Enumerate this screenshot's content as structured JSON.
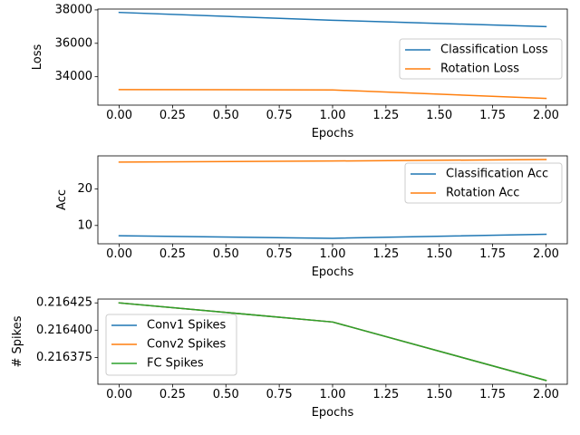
{
  "chart_data": [
    {
      "type": "line",
      "xlabel": "Epochs",
      "ylabel": "Loss",
      "xlim": [
        -0.1,
        2.1
      ],
      "ylim": [
        32300,
        38050
      ],
      "xticks": [
        0.0,
        0.25,
        0.5,
        0.75,
        1.0,
        1.25,
        1.5,
        1.75,
        2.0
      ],
      "xtick_labels": [
        "0.00",
        "0.25",
        "0.50",
        "0.75",
        "1.00",
        "1.25",
        "1.50",
        "1.75",
        "2.00"
      ],
      "yticks": [
        34000,
        36000,
        38000
      ],
      "ytick_labels": [
        "34000",
        "36000",
        "38000"
      ],
      "legend": "center-right",
      "grid": false,
      "series": [
        {
          "name": "Classification Loss",
          "color": "#1f77b4",
          "x": [
            0,
            1,
            2
          ],
          "y": [
            37850,
            37380,
            37000
          ]
        },
        {
          "name": "Rotation Loss",
          "color": "#ff7f0e",
          "x": [
            0,
            1,
            2
          ],
          "y": [
            33230,
            33210,
            32700
          ]
        }
      ]
    },
    {
      "type": "line",
      "xlabel": "Epochs",
      "ylabel": "Acc",
      "xlim": [
        -0.1,
        2.1
      ],
      "ylim": [
        5.0,
        29.0
      ],
      "xticks": [
        0.0,
        0.25,
        0.5,
        0.75,
        1.0,
        1.25,
        1.5,
        1.75,
        2.0
      ],
      "xtick_labels": [
        "0.00",
        "0.25",
        "0.50",
        "0.75",
        "1.00",
        "1.25",
        "1.50",
        "1.75",
        "2.00"
      ],
      "yticks": [
        10,
        20
      ],
      "ytick_labels": [
        "10",
        "20"
      ],
      "legend": "upper-right",
      "grid": false,
      "series": [
        {
          "name": "Classification Acc",
          "color": "#1f77b4",
          "x": [
            0,
            1,
            2
          ],
          "y": [
            7.2,
            6.5,
            7.6
          ]
        },
        {
          "name": "Rotation Acc",
          "color": "#ff7f0e",
          "x": [
            0,
            1,
            2
          ],
          "y": [
            27.3,
            27.6,
            28.0
          ]
        }
      ]
    },
    {
      "type": "line",
      "xlabel": "Epochs",
      "ylabel": "# Spikes",
      "xlim": [
        -0.1,
        2.1
      ],
      "ylim": [
        0.2163505,
        0.2164285
      ],
      "xticks": [
        0.0,
        0.25,
        0.5,
        0.75,
        1.0,
        1.25,
        1.5,
        1.75,
        2.0
      ],
      "xtick_labels": [
        "0.00",
        "0.25",
        "0.50",
        "0.75",
        "1.00",
        "1.25",
        "1.50",
        "1.75",
        "2.00"
      ],
      "yticks": [
        0.216375,
        0.2164,
        0.216425
      ],
      "ytick_labels": [
        "0.216375",
        "0.216400",
        "0.216425"
      ],
      "legend": "center-left",
      "grid": false,
      "series": [
        {
          "name": "Conv1 Spikes",
          "color": "#1f77b4",
          "x": [
            0,
            1,
            2
          ],
          "y": [
            0.216425,
            0.2164075,
            0.216354
          ]
        },
        {
          "name": "Conv2 Spikes",
          "color": "#ff7f0e",
          "x": [
            0,
            1,
            2
          ],
          "y": [
            0.216425,
            0.2164075,
            0.216354
          ]
        },
        {
          "name": "FC Spikes",
          "color": "#2ca02c",
          "x": [
            0,
            1,
            2
          ],
          "y": [
            0.216425,
            0.2164075,
            0.216354
          ]
        }
      ]
    }
  ]
}
